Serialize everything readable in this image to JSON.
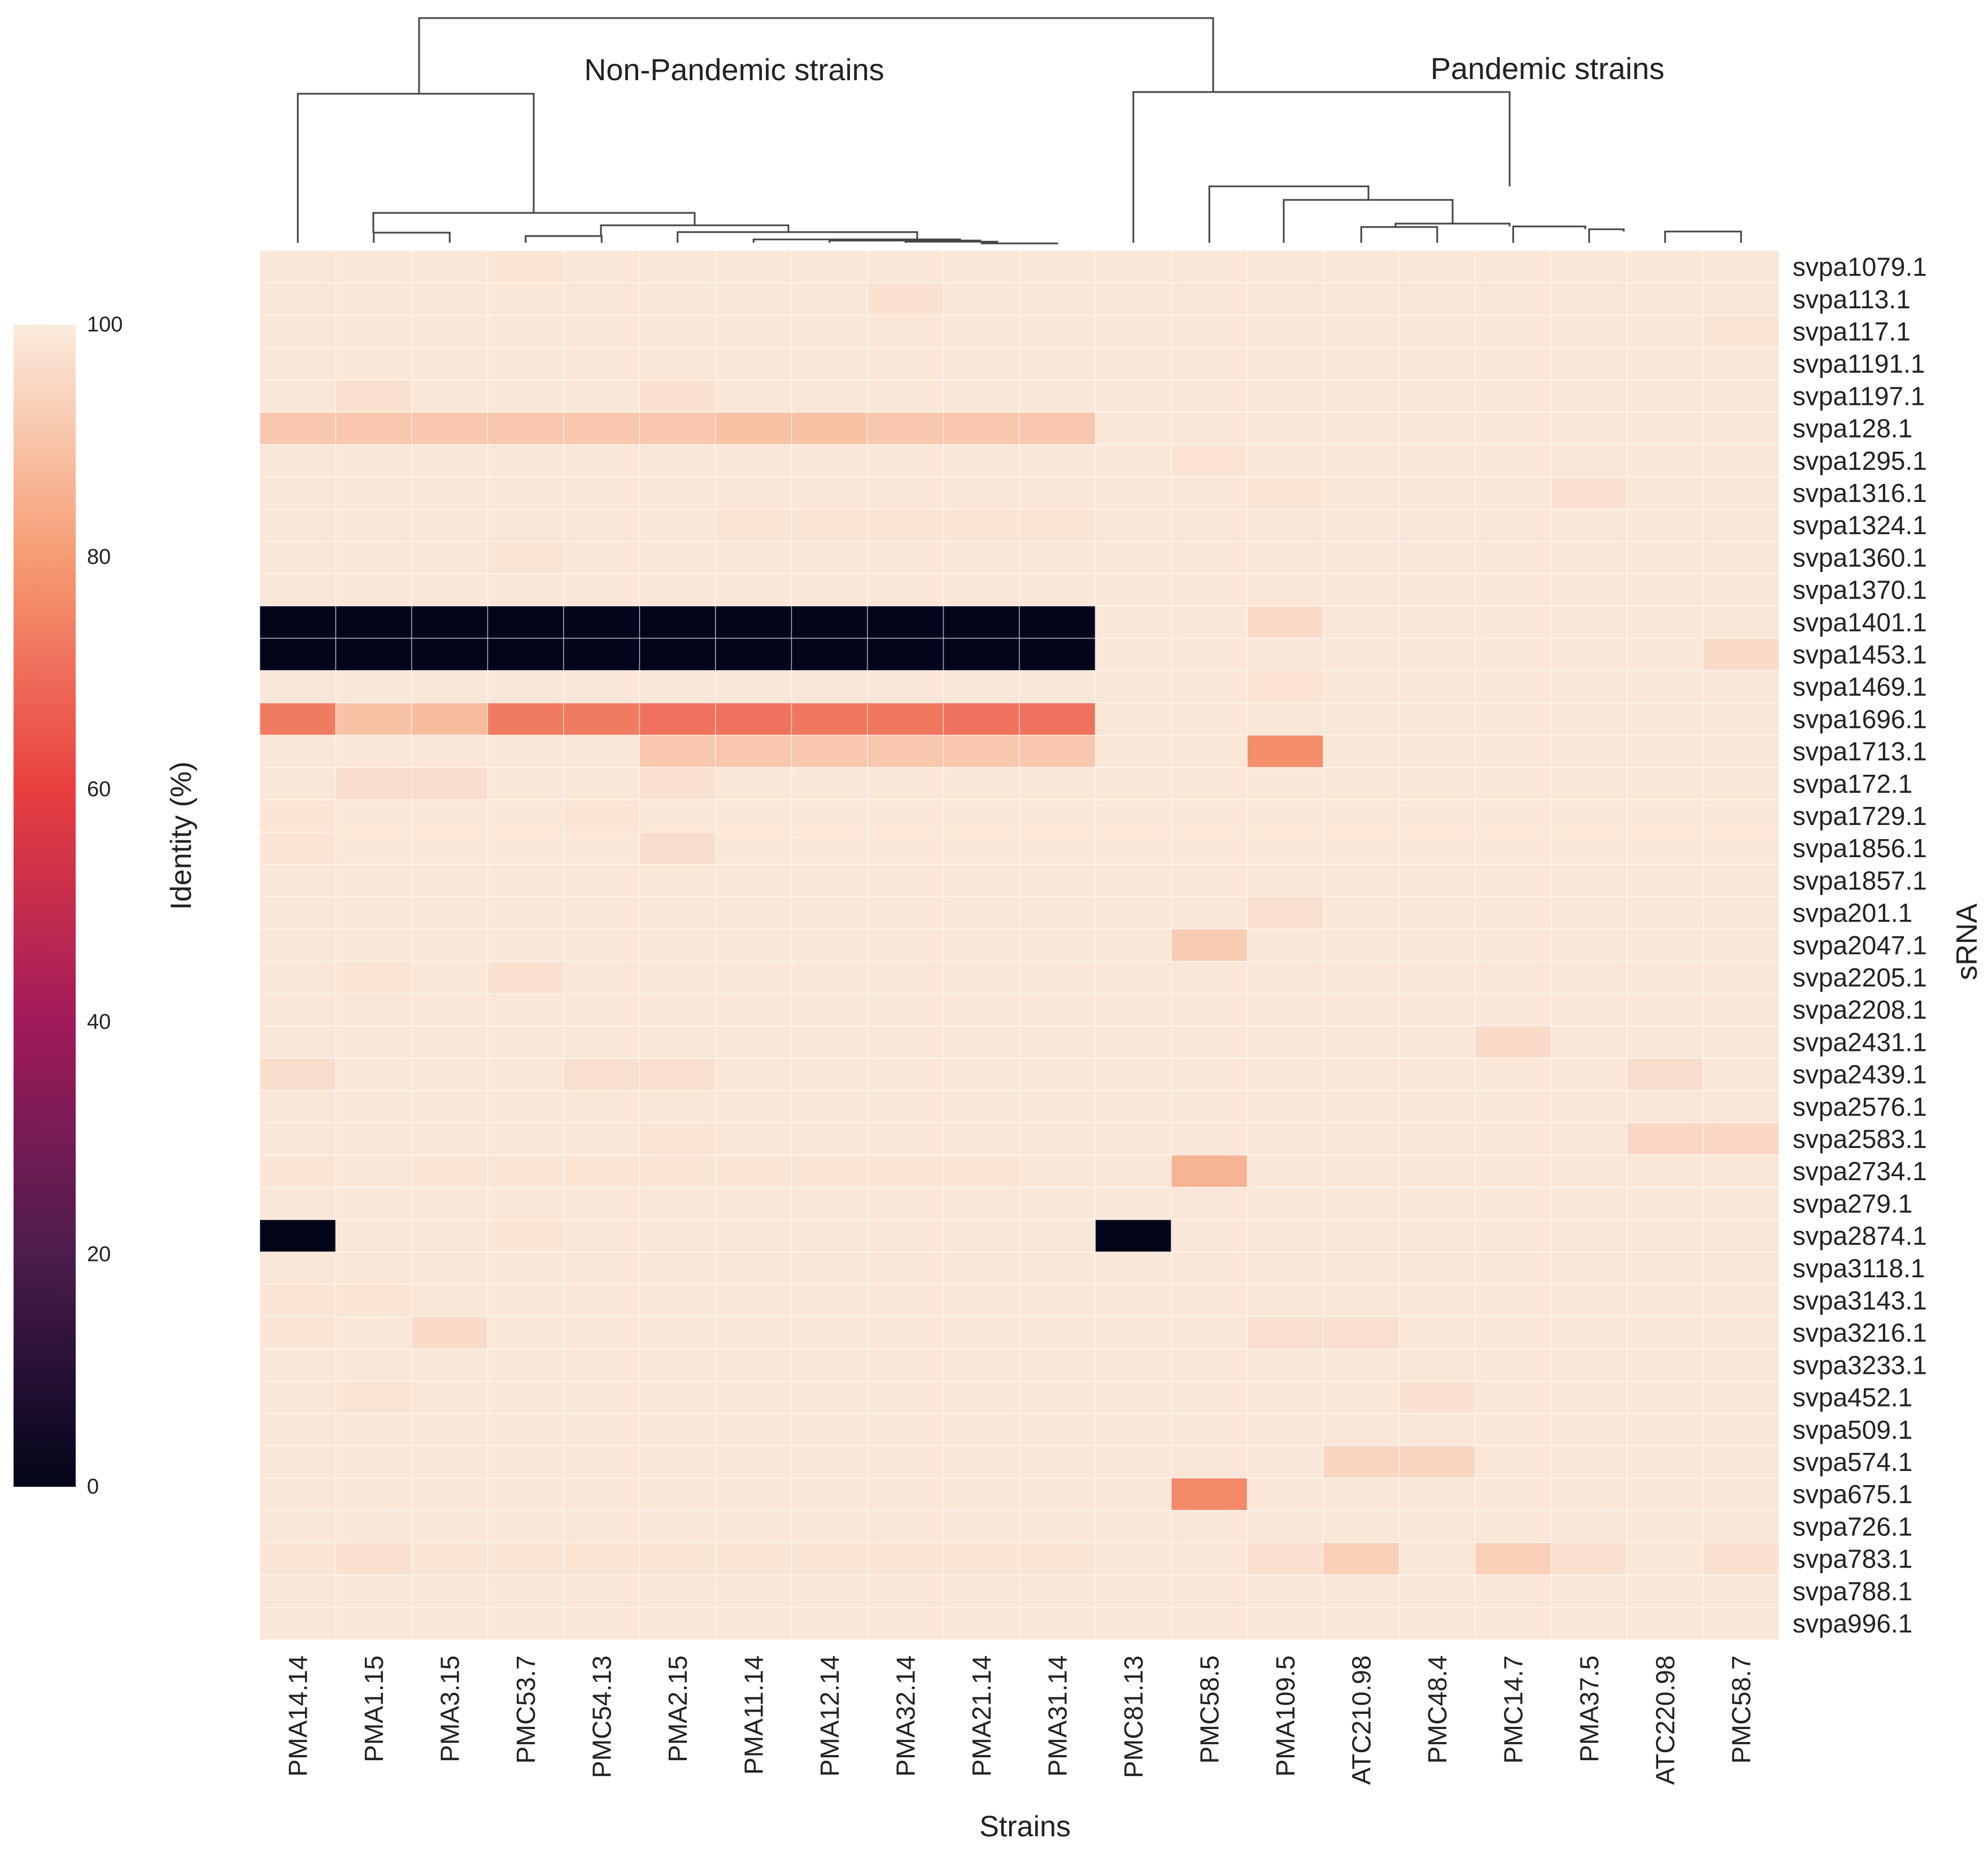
{
  "chart_data": {
    "type": "heatmap",
    "title": "",
    "xlabel": "Strains",
    "ylabel": "sRNA",
    "colorbar": {
      "label": "Identity (%)",
      "ticks": [
        "0",
        "20",
        "40",
        "60",
        "80",
        "100"
      ],
      "range": [
        0,
        100
      ]
    },
    "group_labels": [
      "Non-Pandemic strains",
      "Pandemic strains"
    ],
    "columns": [
      "PMA14.14",
      "PMA1.15",
      "PMA3.15",
      "PMC53.7",
      "PMC54.13",
      "PMA2.15",
      "PMA11.14",
      "PMA12.14",
      "PMA32.14",
      "PMA21.14",
      "PMA31.14",
      "PMC81.13",
      "PMC58.5",
      "PMA109.5",
      "ATC210.98",
      "PMC48.4",
      "PMC14.7",
      "PMA37.5",
      "ATC220.98",
      "PMC58.7"
    ],
    "rows": [
      "svpa1079.1",
      "svpa113.1",
      "svpa117.1",
      "svpa1191.1",
      "svpa1197.1",
      "svpa128.1",
      "svpa1295.1",
      "svpa1316.1",
      "svpa1324.1",
      "svpa1360.1",
      "svpa1370.1",
      "svpa1401.1",
      "svpa1453.1",
      "svpa1469.1",
      "svpa1696.1",
      "svpa1713.1",
      "svpa172.1",
      "svpa1729.1",
      "svpa1856.1",
      "svpa1857.1",
      "svpa201.1",
      "svpa2047.1",
      "svpa2205.1",
      "svpa2208.1",
      "svpa2431.1",
      "svpa2439.1",
      "svpa2576.1",
      "svpa2583.1",
      "svpa2734.1",
      "svpa279.1",
      "svpa2874.1",
      "svpa3118.1",
      "svpa3143.1",
      "svpa3216.1",
      "svpa3233.1",
      "svpa452.1",
      "svpa509.1",
      "svpa574.1",
      "svpa675.1",
      "svpa726.1",
      "svpa783.1",
      "svpa788.1",
      "svpa996.1"
    ],
    "values": [
      [
        99,
        99,
        99,
        98.5,
        99,
        99,
        99,
        99,
        99,
        99,
        99,
        99,
        99,
        99,
        99,
        99,
        99,
        99,
        99,
        99
      ],
      [
        99,
        99,
        99,
        99,
        99,
        99,
        99,
        99,
        97.5,
        99,
        99,
        99,
        99,
        99,
        99,
        99,
        99,
        99,
        99,
        99
      ],
      [
        99,
        99,
        99,
        99,
        99,
        99,
        99,
        99,
        99,
        99,
        99,
        99,
        99,
        99,
        99,
        99,
        99,
        99,
        99,
        98.5
      ],
      [
        99,
        99,
        99,
        99,
        99,
        99,
        99,
        99,
        99,
        99,
        99,
        99,
        99,
        99,
        99,
        99,
        99,
        99,
        99,
        99
      ],
      [
        99,
        97,
        99,
        99,
        99,
        97.5,
        99,
        99,
        99,
        99,
        99,
        99,
        99,
        99,
        99,
        99,
        99,
        99,
        99,
        99
      ],
      [
        91,
        91,
        91,
        91,
        91,
        91,
        89.5,
        89.5,
        91,
        91,
        91,
        99,
        99,
        99,
        99,
        99,
        99,
        99,
        99,
        99
      ],
      [
        99,
        99,
        99,
        99,
        99,
        99,
        99,
        99,
        99,
        99,
        99,
        99,
        98,
        99,
        99,
        99,
        99,
        99,
        99,
        99
      ],
      [
        99,
        99,
        99,
        99,
        99,
        99,
        99,
        99,
        99,
        99,
        99,
        99,
        99,
        98.5,
        99,
        99,
        99,
        97.5,
        99,
        99
      ],
      [
        99,
        99,
        99,
        99,
        99,
        99,
        98.5,
        98.5,
        98.5,
        98.5,
        98.5,
        99,
        99,
        99,
        99,
        99,
        99,
        99,
        99,
        99
      ],
      [
        99,
        99,
        99,
        98.5,
        99,
        99,
        99,
        99,
        99,
        99,
        99,
        99,
        99,
        99,
        99,
        99,
        99,
        99,
        99,
        99
      ],
      [
        99,
        99,
        99,
        99,
        99,
        99,
        99,
        99,
        99,
        99,
        99,
        99,
        99,
        99,
        99,
        99,
        99,
        99,
        99,
        99
      ],
      [
        0,
        0,
        0,
        0,
        0,
        0,
        0,
        0,
        0,
        0,
        0,
        99,
        99,
        96,
        99,
        99,
        99,
        99,
        99,
        99
      ],
      [
        0,
        0,
        0,
        0,
        0,
        0,
        0,
        0,
        0,
        0,
        0,
        99,
        99,
        99,
        99,
        99,
        99,
        99,
        99,
        96
      ],
      [
        99,
        99,
        99,
        99,
        99,
        99,
        99,
        99,
        99,
        99,
        99,
        99,
        99,
        98,
        99,
        99,
        99,
        99,
        99,
        99
      ],
      [
        73,
        89.5,
        88,
        73,
        73,
        71,
        71,
        72,
        72,
        71,
        71,
        99,
        99,
        99,
        99,
        99,
        99,
        99,
        99,
        99
      ],
      [
        99,
        99,
        99,
        99,
        99,
        91,
        91,
        91,
        91,
        91,
        91,
        99,
        99,
        77,
        99,
        99,
        99,
        99,
        99,
        99
      ],
      [
        99,
        96.5,
        96.5,
        99,
        99,
        97.5,
        99,
        99,
        99,
        99,
        99,
        99,
        99,
        99,
        99,
        99,
        99,
        99,
        99,
        99
      ],
      [
        98.5,
        99,
        99,
        99,
        98.5,
        99,
        99,
        99,
        99,
        99,
        99,
        99,
        99,
        99,
        99,
        99,
        99,
        99,
        99,
        99
      ],
      [
        98.5,
        99,
        99,
        99,
        99,
        96.5,
        99,
        99,
        99,
        99,
        99,
        99,
        99,
        99,
        99,
        99,
        99,
        99,
        99,
        99
      ],
      [
        99,
        99,
        99,
        99,
        99,
        99,
        99,
        99,
        99,
        99,
        99,
        99,
        99,
        99,
        99,
        99,
        99,
        99,
        99,
        99
      ],
      [
        99,
        99,
        99,
        99,
        99,
        99,
        99,
        99,
        99,
        99,
        99,
        99,
        99,
        97,
        99,
        99,
        99,
        99,
        99,
        99
      ],
      [
        99,
        99,
        99,
        99,
        99,
        99,
        99,
        99,
        99,
        99,
        99,
        99,
        92,
        99,
        99,
        99,
        99,
        99,
        99,
        99
      ],
      [
        99,
        98.5,
        99,
        97.5,
        99,
        99,
        99,
        99,
        99,
        99,
        99,
        99,
        99,
        99,
        99,
        99,
        99,
        99,
        99,
        99
      ],
      [
        99,
        99,
        99,
        99,
        99,
        99,
        99,
        99,
        99,
        99,
        99,
        99,
        99,
        99,
        99,
        99,
        99,
        99,
        99,
        99
      ],
      [
        99,
        99,
        99,
        99,
        99,
        99,
        99,
        99,
        99,
        99,
        99,
        99,
        99,
        99,
        99,
        99,
        96,
        99,
        99,
        99
      ],
      [
        96.5,
        99,
        99,
        99,
        97,
        97,
        99,
        99,
        99,
        99,
        99,
        99,
        99,
        99,
        99,
        99,
        99,
        99,
        96.5,
        99
      ],
      [
        99,
        99,
        99,
        99,
        99,
        99,
        99,
        99,
        99,
        99,
        99,
        99,
        99,
        99,
        99,
        99,
        99,
        99,
        99,
        99
      ],
      [
        99,
        99,
        99,
        99,
        99,
        98.5,
        99,
        99,
        99,
        99,
        99,
        99,
        99,
        99,
        99,
        99,
        99,
        99,
        95,
        95
      ],
      [
        98.5,
        99,
        98.5,
        98.5,
        98.5,
        98.5,
        98.5,
        98.5,
        98.5,
        98.5,
        99,
        99,
        86,
        99,
        99,
        99,
        99,
        99,
        99,
        99
      ],
      [
        99,
        99,
        99,
        99,
        99,
        99,
        99,
        99,
        99,
        99,
        99,
        99,
        99,
        99,
        99,
        99,
        99,
        99,
        99,
        99
      ],
      [
        0,
        99,
        99,
        98.5,
        99,
        99,
        99,
        99,
        99,
        99,
        99,
        0,
        99,
        99,
        99,
        99,
        99,
        99,
        99,
        99
      ],
      [
        99,
        99,
        99,
        99,
        99,
        99,
        99,
        99,
        99,
        99,
        99,
        99,
        99,
        99,
        99,
        99,
        99,
        99,
        99,
        99
      ],
      [
        98.5,
        98.5,
        99,
        99,
        99,
        99,
        99,
        99,
        99,
        99,
        99,
        99,
        99,
        99,
        99,
        99,
        99,
        99,
        99,
        99
      ],
      [
        98.5,
        99,
        96,
        99,
        99,
        99,
        99,
        99,
        99,
        99,
        99,
        99,
        99,
        97,
        97,
        99,
        99,
        99,
        99,
        99
      ],
      [
        99,
        99,
        99,
        99,
        99,
        99,
        99,
        99,
        99,
        99,
        99,
        99,
        99,
        99,
        99,
        99,
        99,
        99,
        99,
        99
      ],
      [
        99,
        98.5,
        99,
        99,
        99,
        99,
        99,
        99,
        99,
        99,
        99,
        99,
        99,
        99,
        99,
        97.5,
        99,
        99,
        99,
        99
      ],
      [
        99,
        99,
        99,
        99,
        99,
        99,
        99,
        99,
        99,
        99,
        99,
        99,
        99,
        99,
        99,
        99,
        99,
        99,
        99,
        99
      ],
      [
        99,
        99,
        99,
        99,
        99,
        99,
        99,
        99,
        99,
        99,
        99,
        99,
        99,
        99,
        94.5,
        94.5,
        99,
        99,
        99,
        99
      ],
      [
        99,
        99,
        99,
        99,
        99,
        99,
        99,
        99,
        99,
        99,
        99,
        99,
        76,
        99,
        99,
        99,
        99,
        99,
        99,
        99
      ],
      [
        99,
        99,
        99,
        99,
        99,
        99,
        99,
        99,
        99,
        99,
        99,
        99,
        99,
        99,
        99,
        99,
        99,
        99,
        99,
        99
      ],
      [
        98.5,
        97.5,
        98.5,
        98.5,
        98.5,
        98.5,
        98.5,
        98.5,
        98.5,
        98.5,
        98.5,
        99,
        99,
        97.5,
        93,
        99,
        93,
        97.5,
        99,
        97.5
      ],
      [
        99,
        99,
        99,
        99,
        99,
        99,
        99,
        99,
        99,
        99,
        99,
        99,
        99,
        99,
        99,
        99,
        99,
        99,
        99,
        99
      ],
      [
        99,
        99,
        99,
        99,
        99,
        99,
        99,
        99,
        99,
        99,
        99,
        99,
        99,
        99,
        99,
        99,
        99,
        99,
        99,
        99
      ]
    ],
    "colormap": [
      "#03051a",
      "#4c1d4b",
      "#a11a5b",
      "#e83f3f",
      "#f69c73",
      "#faebdd"
    ]
  }
}
